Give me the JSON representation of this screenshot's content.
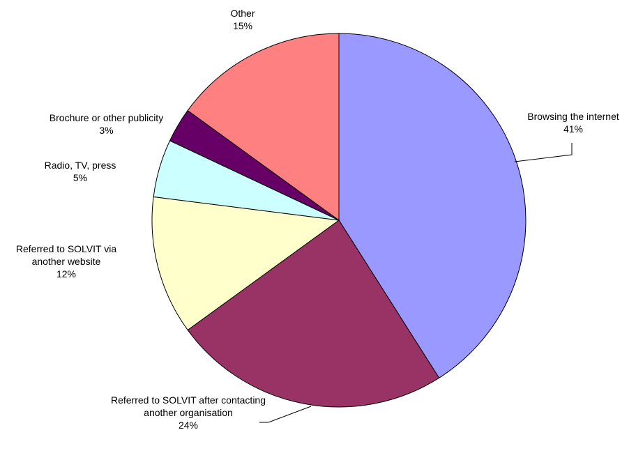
{
  "chart_data": {
    "type": "pie",
    "categories": [
      "Browsing the internet",
      "Referred to SOLVIT after contacting another organisation",
      "Referred to SOLVIT via another website",
      "Radio, TV, press",
      "Brochure or other publicity",
      "Other"
    ],
    "values": [
      41,
      24,
      12,
      5,
      3,
      15
    ],
    "value_labels": [
      "41%",
      "24%",
      "12%",
      "5%",
      "3%",
      "15%"
    ],
    "colors": [
      "#9999ff",
      "#993366",
      "#ffffcc",
      "#ccffff",
      "#660066",
      "#ff8080"
    ]
  }
}
